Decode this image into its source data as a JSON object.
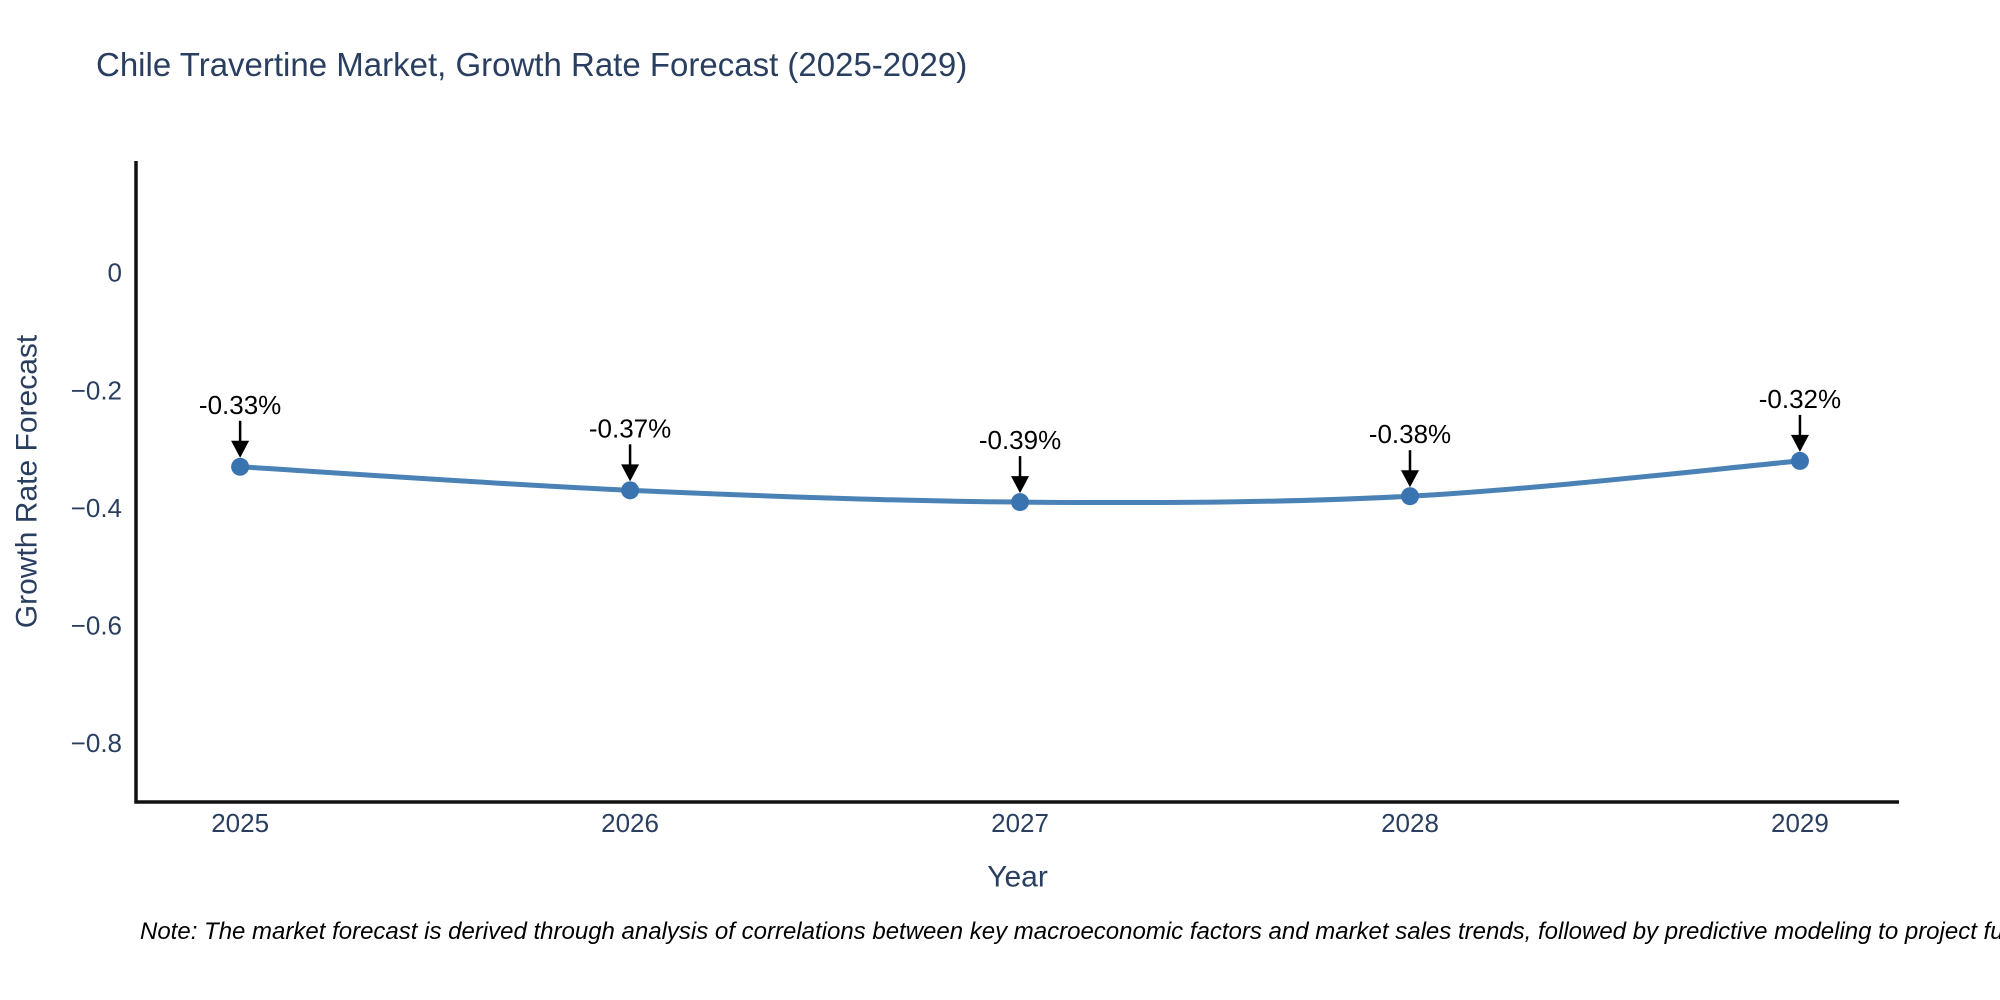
{
  "page": {
    "background_color": "#ffffff"
  },
  "chart_data": {
    "type": "line",
    "title": "Chile Travertine Market, Growth Rate Forecast (2025-2029)",
    "xlabel": "Year",
    "ylabel": "Growth Rate Forecast",
    "x": [
      2025,
      2026,
      2027,
      2028,
      2029
    ],
    "series": [
      {
        "name": "Growth Rate Forecast",
        "values": [
          -0.33,
          -0.37,
          -0.39,
          -0.38,
          -0.32
        ]
      }
    ],
    "data_labels": [
      "-0.33%",
      "-0.37%",
      "-0.39%",
      "-0.38%",
      "-0.32%"
    ],
    "x_tick_labels": [
      "2025",
      "2026",
      "2027",
      "2028",
      "2029"
    ],
    "y_ticks": [
      {
        "value": 0,
        "label": "0"
      },
      {
        "value": -0.2,
        "label": "−0.2"
      },
      {
        "value": -0.4,
        "label": "−0.4"
      },
      {
        "value": -0.6,
        "label": "−0.6"
      },
      {
        "value": -0.8,
        "label": "−0.8"
      }
    ],
    "xlim": [
      2024.733,
      2029.254
    ],
    "ylim": [
      -0.9,
      0.19
    ],
    "grid": false,
    "legend_position": "none",
    "line_shape": "spline",
    "colors": {
      "line": "#4a82b6",
      "marker": "#3a74b0",
      "axis_line": "#111111",
      "tick_text": "#2a3f5f",
      "title_text": "#2a3f5f",
      "annotation": "#000000"
    }
  },
  "note": {
    "text": "Note: The market forecast is derived through analysis of correlations between key macroeconomic factors and market sales trends, followed by predictive modeling to project future sales."
  }
}
